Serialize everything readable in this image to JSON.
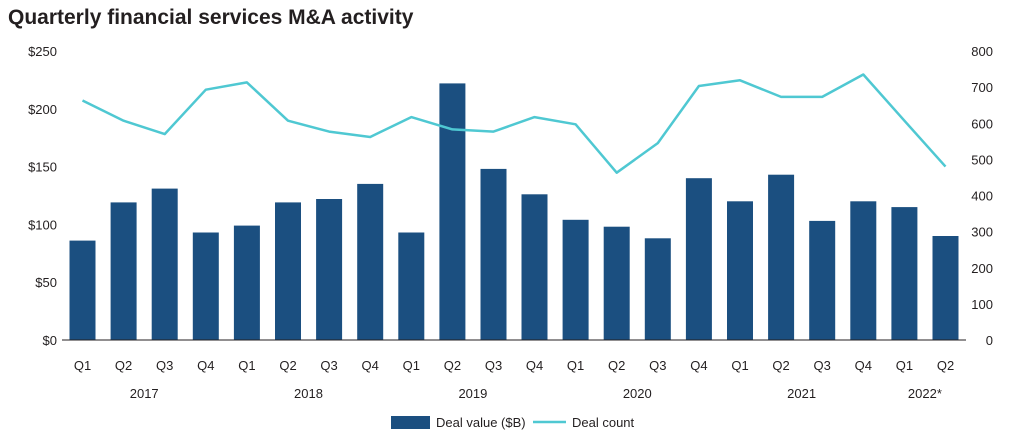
{
  "title": "Quarterly financial services M&A activity",
  "colors": {
    "bar": "#1b4f80",
    "line": "#4fc8d2",
    "axis": "#231f20"
  },
  "chart_data": {
    "type": "bar",
    "title": "Quarterly financial services M&A activity",
    "categories": [
      "Q1",
      "Q2",
      "Q3",
      "Q4",
      "Q1",
      "Q2",
      "Q3",
      "Q4",
      "Q1",
      "Q2",
      "Q3",
      "Q4",
      "Q1",
      "Q2",
      "Q3",
      "Q4",
      "Q1",
      "Q2",
      "Q3",
      "Q4",
      "Q1",
      "Q2"
    ],
    "year_groups": [
      {
        "label": "2017",
        "start": 0,
        "end": 3
      },
      {
        "label": "2018",
        "start": 4,
        "end": 7
      },
      {
        "label": "2019",
        "start": 8,
        "end": 11
      },
      {
        "label": "2020",
        "start": 12,
        "end": 15
      },
      {
        "label": "2021",
        "start": 16,
        "end": 19
      },
      {
        "label": "2022*",
        "start": 20,
        "end": 21
      }
    ],
    "series": [
      {
        "name": "Deal value ($B)",
        "type": "bar",
        "axis": "left",
        "values": [
          86,
          119,
          131,
          93,
          99,
          119,
          122,
          135,
          93,
          222,
          148,
          126,
          104,
          98,
          88,
          140,
          120,
          143,
          103,
          120,
          115,
          90
        ]
      },
      {
        "name": "Deal count",
        "type": "line",
        "axis": "right",
        "values": [
          663,
          607,
          570,
          693,
          713,
          607,
          577,
          562,
          617,
          583,
          577,
          617,
          597,
          463,
          545,
          703,
          719,
          673,
          673,
          735,
          607,
          480
        ]
      }
    ],
    "y_left": {
      "min": 0,
      "max": 250,
      "ticks": [
        "$0",
        "$50",
        "$100",
        "$150",
        "$200",
        "$250"
      ]
    },
    "y_right": {
      "min": 0,
      "max": 800,
      "ticks": [
        "0",
        "100",
        "200",
        "300",
        "400",
        "500",
        "600",
        "700",
        "800"
      ]
    },
    "grid": false,
    "legend_position": "bottom-center"
  }
}
